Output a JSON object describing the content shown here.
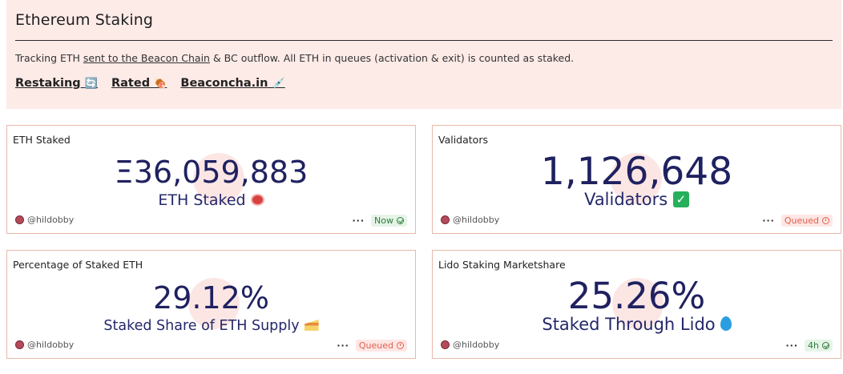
{
  "header": {
    "title": "Ethereum Staking",
    "desc_prefix": "Tracking ETH ",
    "desc_link": "sent to the Beacon Chain",
    "desc_suffix": " & BC outflow. All ETH in queues (activation & exit) is counted as staked.",
    "links": [
      {
        "label": "Restaking",
        "icon": "🔄"
      },
      {
        "label": "Rated",
        "icon": "🍖"
      },
      {
        "label": "Beaconcha.in",
        "icon": "💉"
      }
    ]
  },
  "cards": [
    {
      "title": "ETH Staked",
      "value": "Ξ36,059,883",
      "subtitle": "ETH Staked",
      "subtitle_icon": "meat-icon",
      "user": "@hildobby",
      "status": "Now",
      "status_icon": "check-circle-icon"
    },
    {
      "title": "Validators",
      "value": "1,126,648",
      "subtitle": "Validators",
      "subtitle_icon": "check-mark-icon",
      "user": "@hildobby",
      "status": "Queued",
      "status_icon": "clock-icon"
    },
    {
      "title": "Percentage of Staked ETH",
      "value": "29.12%",
      "subtitle": "Staked Share of ETH Supply",
      "subtitle_icon": "cake-icon",
      "user": "@hildobby",
      "status": "Queued",
      "status_icon": "clock-icon"
    },
    {
      "title": "Lido Staking Marketshare",
      "value": "25.26%",
      "subtitle": "Staked Through Lido",
      "subtitle_icon": "droplet-icon",
      "user": "@hildobby",
      "status": "4h",
      "status_icon": "check-circle-icon"
    }
  ],
  "dots": "···",
  "check_glyph": "✓",
  "colors": {
    "header_bg": "#fdebe8",
    "card_border": "#e8b8aa",
    "value_text": "#1f2160",
    "status_now": "#2e7d3a",
    "status_queued": "#e0604f"
  }
}
